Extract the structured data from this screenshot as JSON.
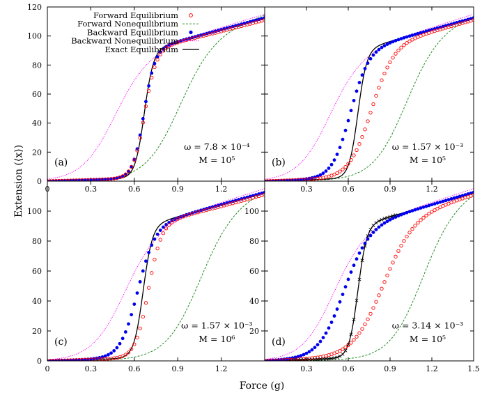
{
  "figure": {
    "xlabel": "Force (g)",
    "ylabel": "Extension (⟨x⟩)",
    "colors": {
      "forward_eq": "#ff0000",
      "forward_neq": "#228B22",
      "backward_eq": "#0000ee",
      "backward_neq": "#ff00ff",
      "exact": "#000000"
    },
    "legend": {
      "placement": "top-left of panel (a)",
      "entries": [
        {
          "key": "forward_eq",
          "label": "Forward Equilibrium",
          "marker": "open-circle"
        },
        {
          "key": "forward_neq",
          "label": "Forward Nonequilibrium",
          "marker": "dashed-line"
        },
        {
          "key": "backward_eq",
          "label": "Backward Equilibrium",
          "marker": "filled-circle"
        },
        {
          "key": "backward_neq",
          "label": "Backward Nonequilibrium",
          "marker": "dotted-line"
        },
        {
          "key": "exact",
          "label": "Exact Equilibrium",
          "marker": "solid-line"
        }
      ]
    }
  },
  "chart_data": [
    {
      "panel": "(a)",
      "type": "line",
      "omega": "ω = 7.8 × 10⁻⁴",
      "M": "M = 10⁵",
      "xlim": [
        0,
        1.5
      ],
      "ylim": [
        0,
        120
      ],
      "xticks": [
        "0",
        "0.3",
        "0.6",
        "0.9",
        "1.2",
        ""
      ],
      "yticks": [
        "0",
        "20",
        "40",
        "60",
        "80",
        "100",
        "120"
      ],
      "params": {
        "fe": 0.67,
        "be": 0.665,
        "fn": 0.9,
        "bn": 0.45,
        "ex": 0.668,
        "fwSteep": 0.04,
        "bwSteep": 0.038,
        "exSteep": 0.032,
        "fnSteep": 0.12,
        "bnSteep": 0.115,
        "cross": false
      }
    },
    {
      "panel": "(b)",
      "type": "line",
      "omega": "ω = 1.57 × 10⁻³",
      "M": "M = 10⁵",
      "xlim": [
        0,
        1.5
      ],
      "ylim": [
        0,
        120
      ],
      "xticks": [
        "",
        "0.3",
        "0.6",
        "0.9",
        "1.2",
        ""
      ],
      "yticks": [
        "",
        "",
        "",
        "",
        "",
        "",
        ""
      ],
      "params": {
        "fe": 0.76,
        "be": 0.61,
        "fn": 1.0,
        "bn": 0.45,
        "ex": 0.668,
        "fwSteep": 0.08,
        "bwSteep": 0.065,
        "exSteep": 0.032,
        "fnSteep": 0.12,
        "bnSteep": 0.115,
        "cross": false
      }
    },
    {
      "panel": "(c)",
      "type": "line",
      "omega": "ω = 1.57 × 10⁻³",
      "M": "M = 10⁶",
      "xlim": [
        0,
        1.5
      ],
      "ylim": [
        0,
        120
      ],
      "xticks": [
        "0",
        "0.3",
        "0.6",
        "0.9",
        "1.2",
        ""
      ],
      "yticks": [
        "0",
        "20",
        "40",
        "60",
        "80",
        "100",
        ""
      ],
      "params": {
        "fe": 0.695,
        "be": 0.62,
        "fn": 1.04,
        "bn": 0.52,
        "ex": 0.66,
        "fwSteep": 0.045,
        "bwSteep": 0.06,
        "exSteep": 0.032,
        "fnSteep": 0.12,
        "bnSteep": 0.115,
        "cross": false
      }
    },
    {
      "panel": "(d)",
      "type": "line",
      "omega": "ω = 3.14 × 10⁻³",
      "M": "M = 10⁵",
      "xlim": [
        0,
        1.5
      ],
      "ylim": [
        0,
        120
      ],
      "xticks": [
        "",
        "0.3",
        "0.6",
        "0.9",
        "1.2",
        "1.5"
      ],
      "yticks": [
        "",
        "20",
        "40",
        "60",
        "80",
        "100",
        ""
      ],
      "params": {
        "fe": 0.84,
        "be": 0.56,
        "fn": 1.12,
        "bn": 0.48,
        "ex": 0.668,
        "fwSteep": 0.11,
        "bwSteep": 0.09,
        "exSteep": 0.032,
        "fnSteep": 0.12,
        "bnSteep": 0.115,
        "cross": true
      }
    }
  ]
}
